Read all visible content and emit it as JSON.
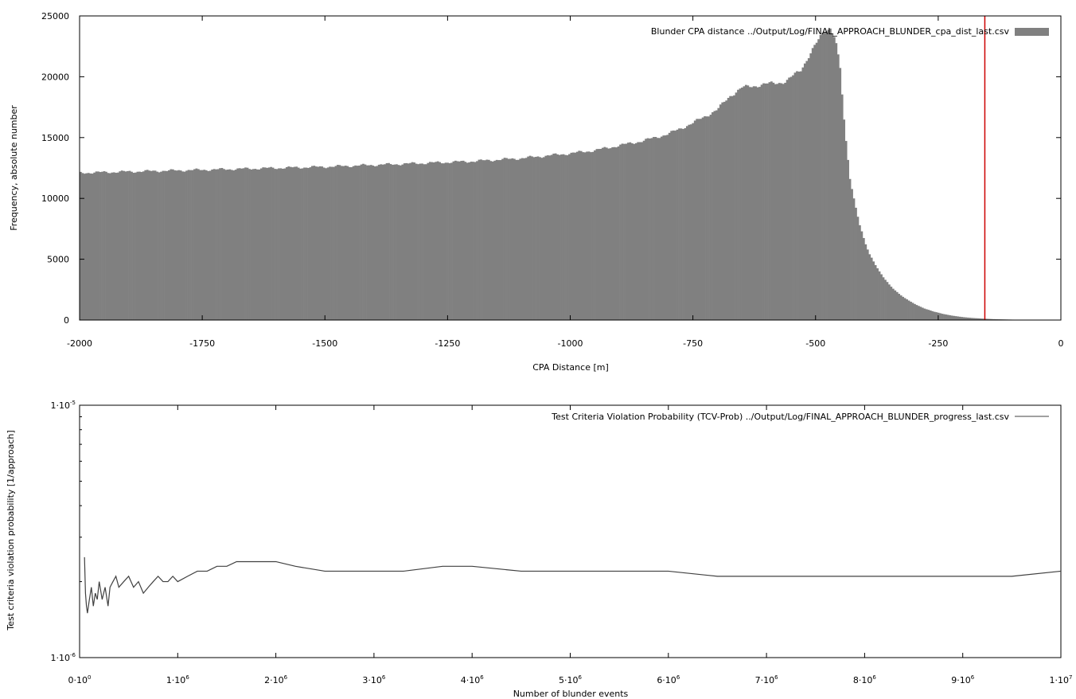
{
  "chart_data": [
    {
      "type": "bar",
      "xlabel": "CPA Distance [m]",
      "ylabel": "Frequency, absolute number",
      "xlim": [
        -2000,
        0
      ],
      "ylim": [
        0,
        25000
      ],
      "x_ticks": [
        "-2000",
        "-1750",
        "-1500",
        "-1250",
        "-1000",
        "-750",
        "-500",
        "-250",
        "0"
      ],
      "y_ticks": [
        "0",
        "5000",
        "10000",
        "15000",
        "20000",
        "25000"
      ],
      "legend": "top-right",
      "series": [
        {
          "name": "Blunder CPA distance ../Output/Log/FINAL_APPROACH_BLUNDER_cpa_dist_last.csv",
          "color": "#808080"
        }
      ],
      "x": [
        -2000,
        -1900,
        -1800,
        -1700,
        -1600,
        -1500,
        -1400,
        -1300,
        -1200,
        -1100,
        -1000,
        -950,
        -900,
        -850,
        -800,
        -750,
        -700,
        -675,
        -650,
        -600,
        -560,
        -530,
        -500,
        -490,
        -480,
        -470,
        -460,
        -450,
        -440,
        -430,
        -420,
        -410,
        -400,
        -390,
        -380,
        -370,
        -360,
        -350,
        -340,
        -320,
        -300,
        -280,
        -260,
        -240,
        -220,
        -200,
        -180,
        -160,
        -140,
        -120,
        -100,
        -80,
        -60,
        -40,
        -20,
        0
      ],
      "values": [
        12100,
        12200,
        12300,
        12400,
        12500,
        12600,
        12750,
        12900,
        13050,
        13300,
        13700,
        13950,
        14350,
        14750,
        15300,
        16200,
        17300,
        18400,
        19100,
        19400,
        19600,
        20600,
        22600,
        23300,
        23900,
        24000,
        23200,
        20600,
        15400,
        11700,
        9600,
        7800,
        6400,
        5400,
        4700,
        4000,
        3400,
        2900,
        2500,
        1850,
        1350,
        980,
        700,
        500,
        350,
        240,
        170,
        120,
        80,
        55,
        35,
        20,
        12,
        6,
        3,
        0
      ],
      "reference_line": {
        "x": -155,
        "color": "#cc0000"
      }
    },
    {
      "type": "line",
      "xlabel": "Number of blunder events",
      "ylabel": "Test criteria violation probability [1/approach]",
      "xlim": [
        0,
        10000000
      ],
      "ylim": [
        1e-06,
        1e-05
      ],
      "y_scale": "log",
      "x_ticks": [
        {
          "m": "0·10",
          "e": "0"
        },
        {
          "m": "1·10",
          "e": "6"
        },
        {
          "m": "2·10",
          "e": "6"
        },
        {
          "m": "3·10",
          "e": "6"
        },
        {
          "m": "4·10",
          "e": "6"
        },
        {
          "m": "5·10",
          "e": "6"
        },
        {
          "m": "6·10",
          "e": "6"
        },
        {
          "m": "7·10",
          "e": "6"
        },
        {
          "m": "8·10",
          "e": "6"
        },
        {
          "m": "9·10",
          "e": "6"
        },
        {
          "m": "1·10",
          "e": "7"
        }
      ],
      "y_ticks": [
        {
          "m": "1·10",
          "e": "-6"
        },
        {
          "m": "1·10",
          "e": "-5"
        }
      ],
      "legend": "top-right",
      "series": [
        {
          "name": "Test Criteria Violation Probability (TCV-Prob) ../Output/Log/FINAL_APPROACH_BLUNDER_progress_last.csv",
          "color": "#404040",
          "x": [
            50000,
            60000,
            70000,
            80000,
            100000,
            120000,
            140000,
            160000,
            180000,
            200000,
            230000,
            260000,
            290000,
            310000,
            340000,
            370000,
            400000,
            450000,
            500000,
            550000,
            600000,
            650000,
            700000,
            750000,
            800000,
            850000,
            900000,
            950000,
            1000000,
            1100000,
            1200000,
            1300000,
            1400000,
            1500000,
            1600000,
            1700000,
            1800000,
            1900000,
            2000000,
            2200000,
            2500000,
            2800000,
            3000000,
            3300000,
            3700000,
            4000000,
            4500000,
            5000000,
            5500000,
            6000000,
            6500000,
            7000000,
            7500000,
            8000000,
            8500000,
            9000000,
            9500000,
            10000000
          ],
          "values": [
            2.5e-06,
            1.8e-06,
            1.6e-06,
            1.5e-06,
            1.7e-06,
            1.9e-06,
            1.6e-06,
            1.8e-06,
            1.7e-06,
            2e-06,
            1.7e-06,
            1.9e-06,
            1.6e-06,
            1.9e-06,
            2e-06,
            2.1e-06,
            1.9e-06,
            2e-06,
            2.1e-06,
            1.9e-06,
            2e-06,
            1.8e-06,
            1.9e-06,
            2e-06,
            2.1e-06,
            2e-06,
            2e-06,
            2.1e-06,
            2e-06,
            2.1e-06,
            2.2e-06,
            2.2e-06,
            2.3e-06,
            2.3e-06,
            2.4e-06,
            2.4e-06,
            2.4e-06,
            2.4e-06,
            2.4e-06,
            2.3e-06,
            2.2e-06,
            2.2e-06,
            2.2e-06,
            2.2e-06,
            2.3e-06,
            2.3e-06,
            2.2e-06,
            2.2e-06,
            2.2e-06,
            2.2e-06,
            2.1e-06,
            2.1e-06,
            2.1e-06,
            2.1e-06,
            2.1e-06,
            2.1e-06,
            2.1e-06,
            2.2e-06
          ]
        }
      ]
    }
  ]
}
